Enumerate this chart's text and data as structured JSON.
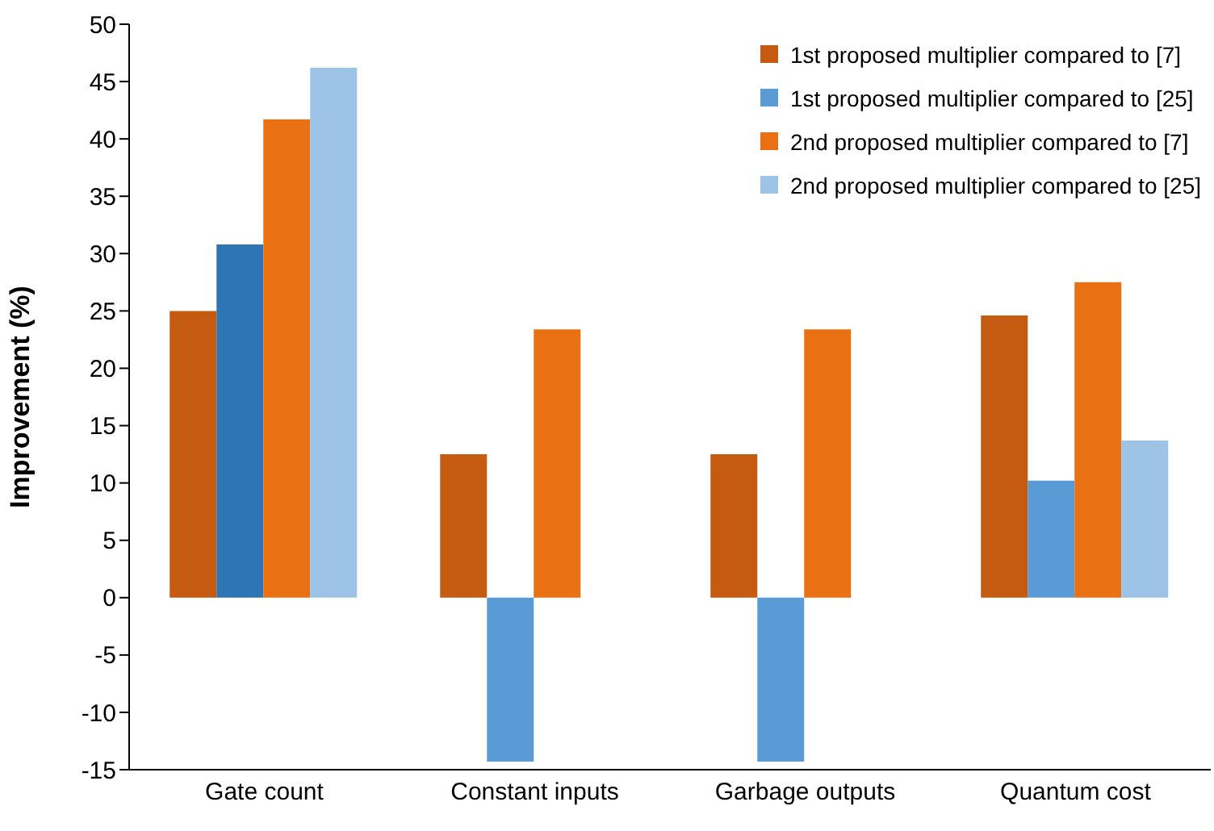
{
  "chart_data": {
    "type": "bar",
    "ylabel": "Improvement (%)",
    "categories": [
      "Gate count",
      "Constant inputs",
      "Garbage outputs",
      "Quantum cost"
    ],
    "series": [
      {
        "name": "1st proposed multiplier compared to [7]",
        "color": "#c55a11",
        "values": [
          25,
          12.5,
          12.5,
          24.6
        ]
      },
      {
        "name": "1st proposed multiplier compared to [25]",
        "color": "#5b9bd5",
        "colors": [
          "#2e75b6",
          "#5b9bd5",
          "#5b9bd5",
          "#5b9bd5"
        ],
        "values": [
          30.8,
          -14.3,
          -14.3,
          10.2
        ]
      },
      {
        "name": "2nd proposed multiplier compared to [7]",
        "color": "#e97013",
        "values": [
          41.7,
          23.4,
          23.4,
          27.5
        ]
      },
      {
        "name": "2nd proposed multiplier compared to [25]",
        "color": "#9dc3e6",
        "values": [
          46.2,
          null,
          null,
          13.7
        ]
      }
    ],
    "ylim": [
      -15,
      50
    ],
    "yticks": [
      -15,
      -10,
      -5,
      0,
      5,
      10,
      15,
      20,
      25,
      30,
      35,
      40,
      45,
      50
    ],
    "grid": false,
    "legend": "top right"
  }
}
